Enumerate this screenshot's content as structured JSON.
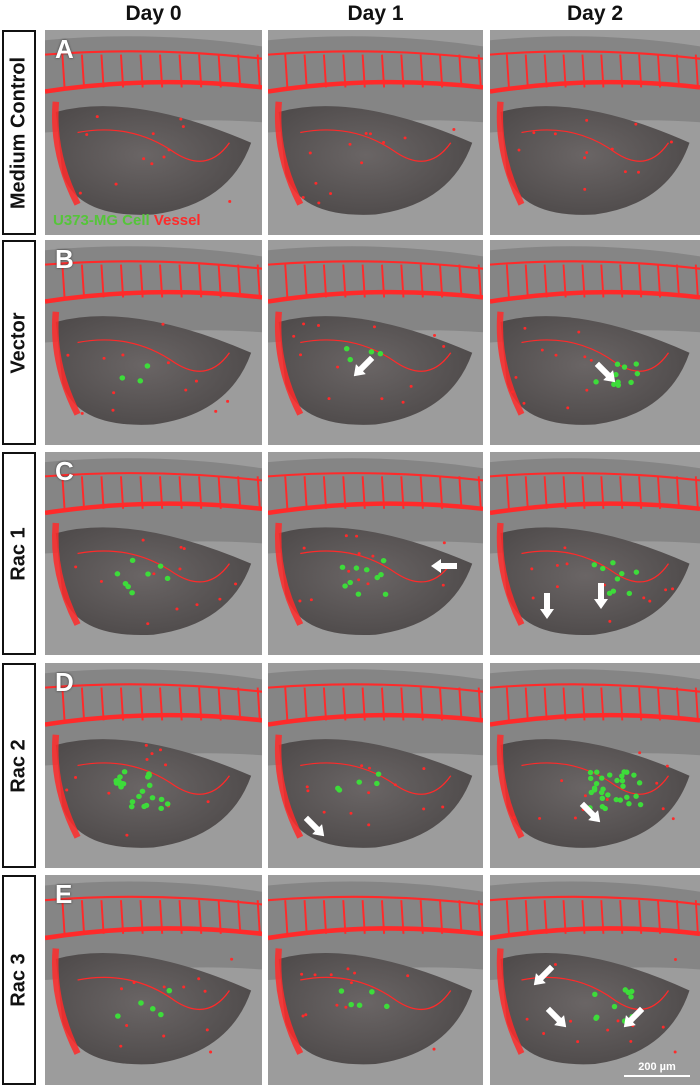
{
  "columns": [
    "Day 0",
    "Day 1",
    "Day 2"
  ],
  "rows": [
    {
      "letter": "A",
      "label": "Medium Control"
    },
    {
      "letter": "B",
      "label": "Vector"
    },
    {
      "letter": "C",
      "label": "Rac 1"
    },
    {
      "letter": "D",
      "label": "Rac 2"
    },
    {
      "letter": "E",
      "label": "Rac 3"
    }
  ],
  "legend": {
    "cell": "U373-MG Cell",
    "vessel": "Vessel"
  },
  "scale_bar": "200 µm",
  "colors": {
    "vessel": "#ff2a2a",
    "cell": "#3ddc3a",
    "background": "#9c9c9c"
  },
  "arrow_icon": "white-arrow"
}
